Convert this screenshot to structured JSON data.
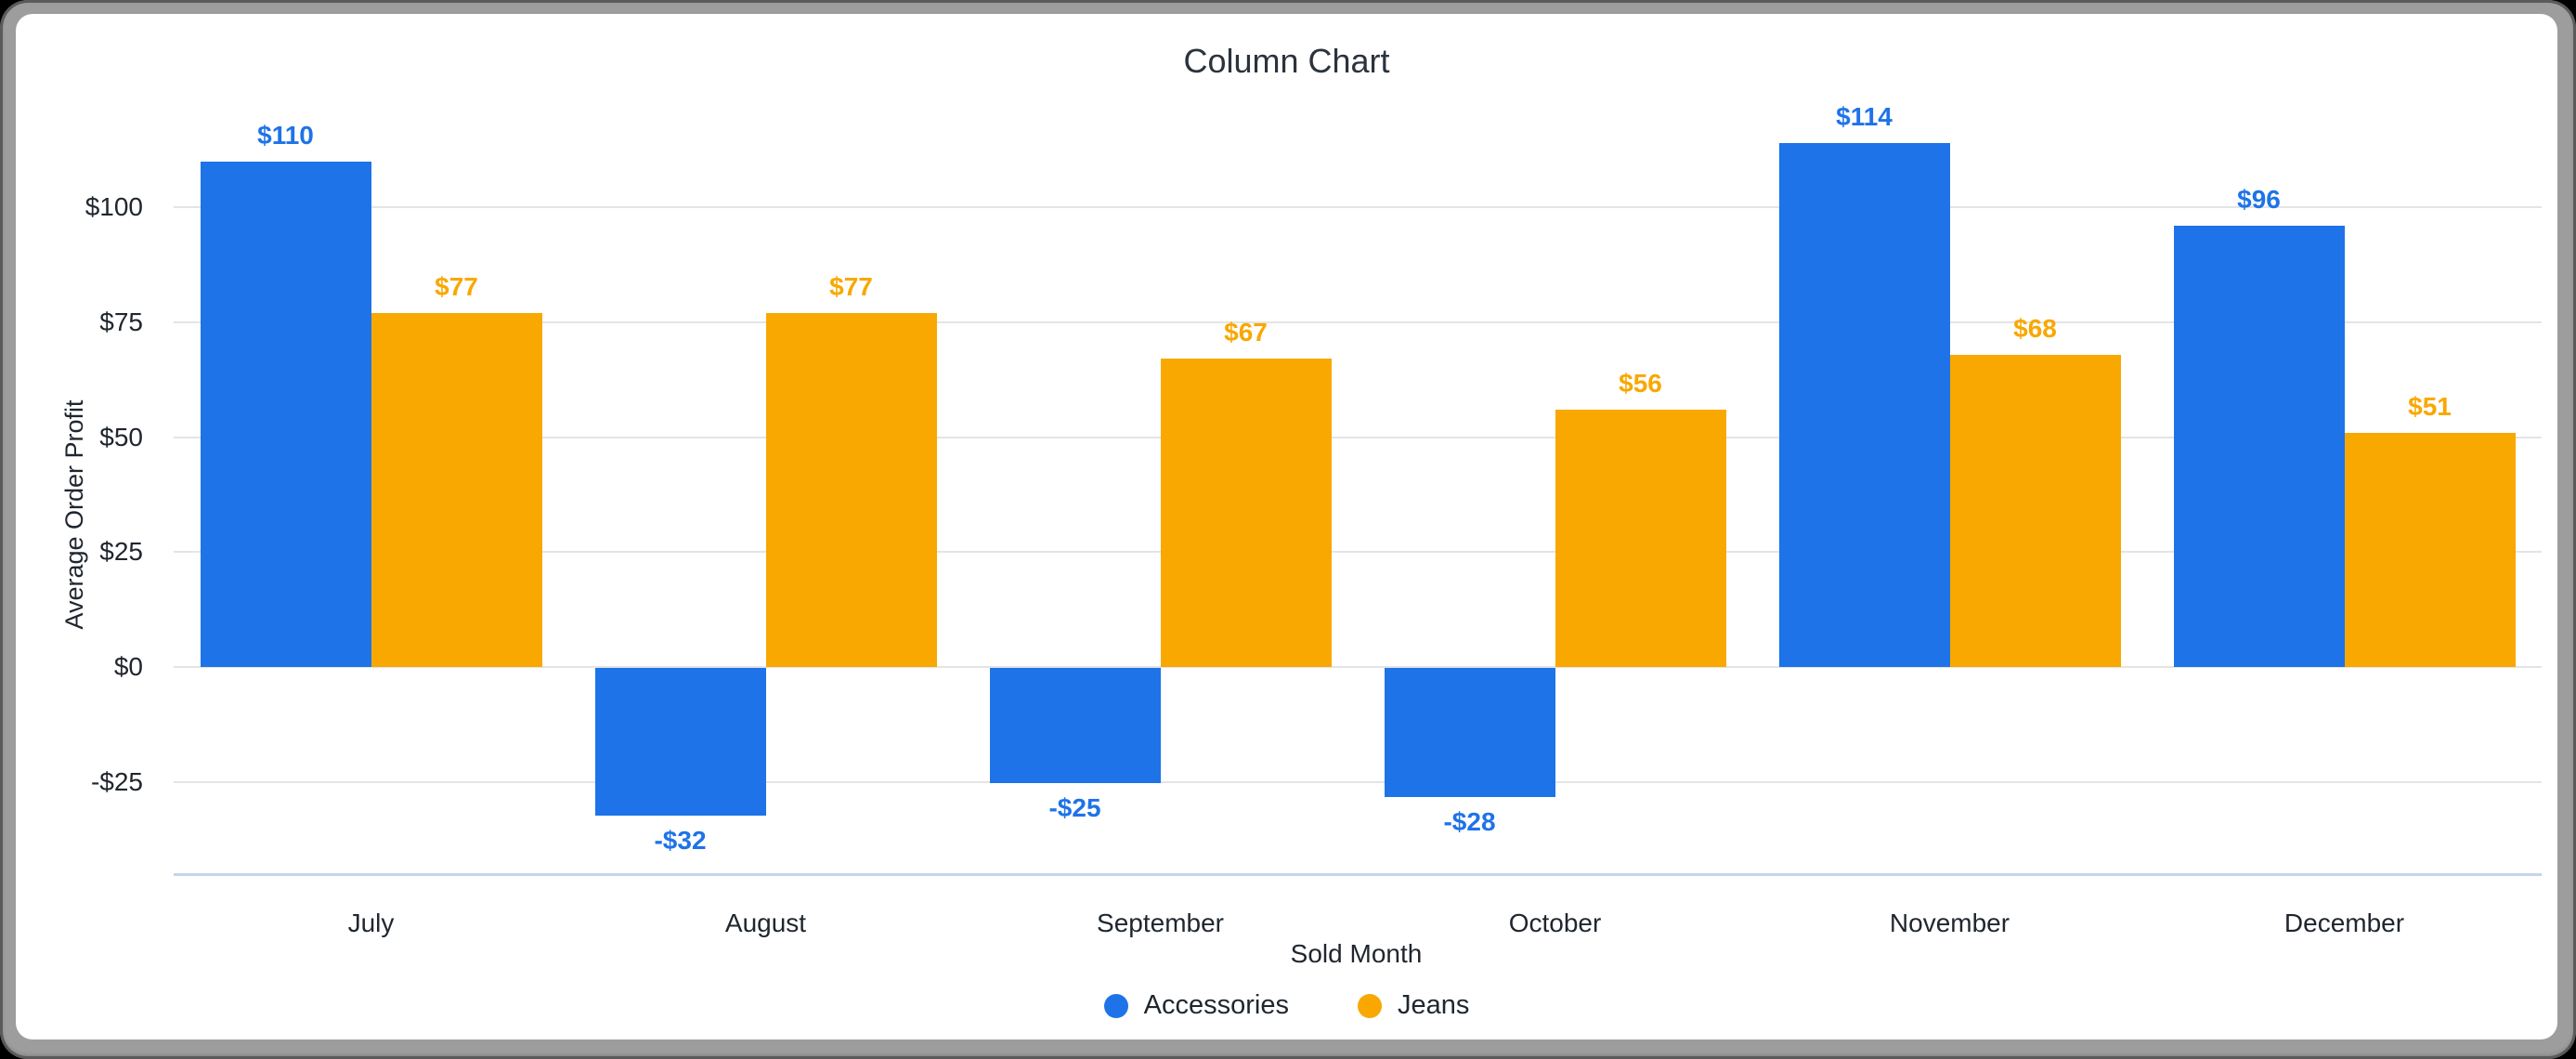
{
  "chart_data": {
    "type": "bar",
    "title": "Column Chart",
    "xlabel": "Sold Month",
    "ylabel": "Average Order Profit",
    "categories": [
      "July",
      "August",
      "September",
      "October",
      "November",
      "December"
    ],
    "series": [
      {
        "name": "Accessories",
        "color": "#1E73E8",
        "values": [
          110,
          -32,
          -25,
          -28,
          114,
          96
        ],
        "labels": [
          "$110",
          "-$32",
          "-$25",
          "-$28",
          "$114",
          "$96"
        ]
      },
      {
        "name": "Jeans",
        "color": "#F8A800",
        "values": [
          77,
          77,
          67,
          56,
          68,
          51
        ],
        "labels": [
          "$77",
          "$77",
          "$67",
          "$56",
          "$68",
          "$51"
        ]
      }
    ],
    "yticks": [
      {
        "v": 100,
        "label": "$100"
      },
      {
        "v": 75,
        "label": "$75"
      },
      {
        "v": 50,
        "label": "$50"
      },
      {
        "v": 25,
        "label": "$25"
      },
      {
        "v": 0,
        "label": "$0"
      },
      {
        "v": -25,
        "label": "-$25"
      }
    ],
    "ylim": [
      -44.8,
      118.8
    ],
    "grid": true,
    "legend_position": "bottom"
  },
  "colors": {
    "accessories_blue": "#1E73E8",
    "jeans_orange": "#F8A800",
    "gridline": "#E4E4E4",
    "axis_baseline": "#C7D2EC",
    "text_dark": "#1F262E"
  }
}
